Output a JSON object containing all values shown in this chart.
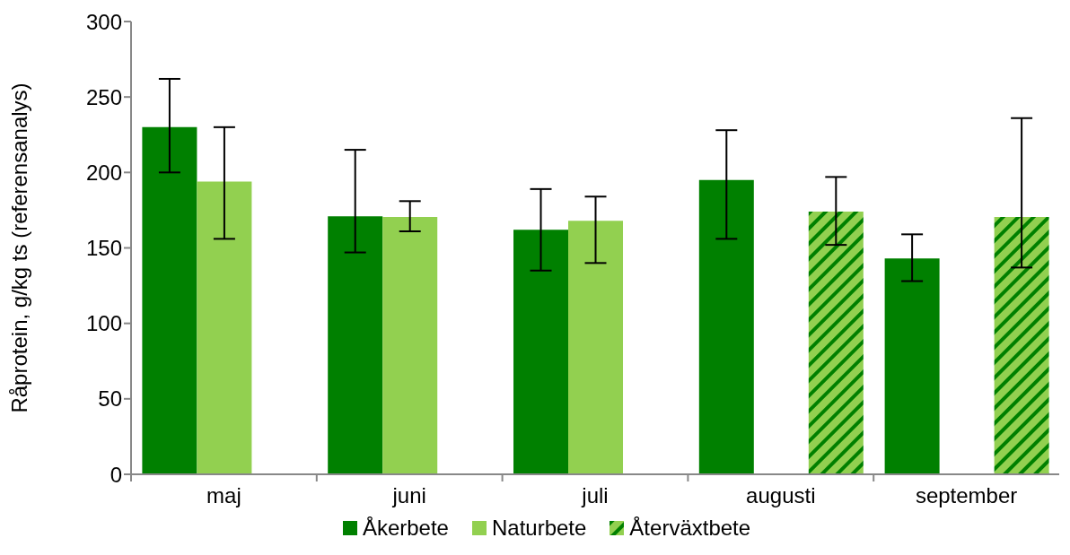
{
  "chart_data": {
    "type": "bar",
    "ylabel": "Råprotein, g/kg ts (referensanalys)",
    "categories": [
      "maj",
      "juni",
      "juli",
      "augusti",
      "september"
    ],
    "ylim": [
      0,
      300
    ],
    "yticks": [
      0,
      50,
      100,
      150,
      200,
      250,
      300
    ],
    "grid": false,
    "legend": "bottom",
    "series": [
      {
        "name": "Åkerbete",
        "color": "#008000",
        "values": [
          230,
          171,
          162,
          195,
          143
        ],
        "errors": [
          [
            200,
            262
          ],
          [
            147,
            215
          ],
          [
            135,
            189
          ],
          [
            156,
            228
          ],
          [
            128,
            159
          ]
        ]
      },
      {
        "name": "Naturbete",
        "color": "#92d050",
        "values": [
          194,
          170.5,
          168,
          null,
          null
        ],
        "errors": [
          [
            156,
            230
          ],
          [
            161,
            181
          ],
          [
            140,
            184
          ],
          null,
          null
        ]
      },
      {
        "name": "Återväxtbete",
        "color": "#92d050",
        "values": [
          null,
          null,
          null,
          174,
          170.5
        ],
        "errors": [
          null,
          null,
          null,
          [
            152,
            197
          ],
          [
            137,
            236
          ]
        ]
      }
    ]
  }
}
